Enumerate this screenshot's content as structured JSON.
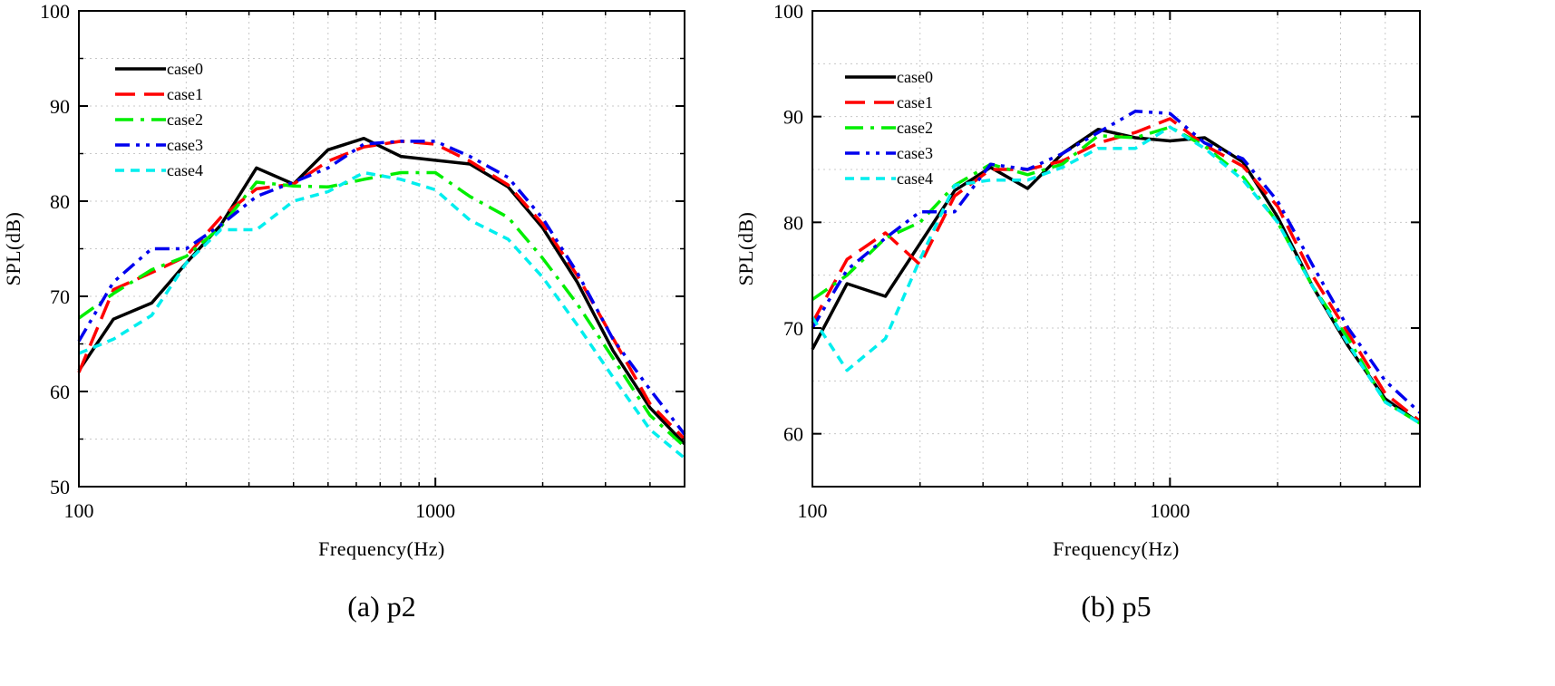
{
  "colors": {
    "case0": "#000000",
    "case1": "#ff0000",
    "case2": "#00ee00",
    "case3": "#0000ee",
    "case4": "#00eeee",
    "grid": "#c8c8c8"
  },
  "chart_data": [
    {
      "type": "line",
      "caption": "(a) p2",
      "xlabel": "Frequency(Hz)",
      "ylabel": "SPL(dB)",
      "xscale": "log",
      "xlim": [
        100,
        5000
      ],
      "ylim": [
        50,
        100
      ],
      "xticks": [
        100,
        1000
      ],
      "xtick_labels": [
        "100",
        "1000"
      ],
      "yticks": [
        50,
        60,
        70,
        80,
        90,
        100
      ],
      "ytick_labels": [
        "50",
        "60",
        "70",
        "80",
        "90",
        "100"
      ],
      "grid": true,
      "legend_position": "top-left",
      "x": [
        100,
        125,
        160,
        200,
        250,
        315,
        400,
        500,
        630,
        800,
        1000,
        1250,
        1600,
        2000,
        2500,
        3150,
        4000,
        5000
      ],
      "series": [
        {
          "name": "case0",
          "style": "solid",
          "values": [
            62.2,
            67.6,
            69.3,
            73.5,
            77.5,
            83.5,
            81.8,
            85.4,
            86.6,
            84.7,
            84.3,
            83.9,
            81.5,
            77.2,
            71.5,
            64.3,
            58.3,
            54.5
          ]
        },
        {
          "name": "case1",
          "style": "dash",
          "values": [
            62.0,
            70.7,
            72.5,
            74.2,
            78.3,
            81.3,
            81.8,
            84.2,
            85.7,
            86.3,
            86.0,
            84.2,
            81.7,
            77.6,
            72.2,
            65.6,
            58.7,
            55.0
          ]
        },
        {
          "name": "case2",
          "style": "dashdot",
          "values": [
            67.7,
            70.3,
            72.8,
            74.2,
            77.3,
            82.0,
            81.6,
            81.5,
            82.3,
            83.0,
            83.0,
            80.5,
            78.3,
            74.0,
            69.2,
            63.5,
            57.5,
            54.2
          ]
        },
        {
          "name": "case3",
          "style": "dashdotdot",
          "values": [
            65.3,
            71.5,
            75.0,
            75.0,
            77.5,
            80.5,
            82.0,
            83.5,
            86.0,
            86.3,
            86.3,
            84.7,
            82.5,
            78.2,
            72.5,
            65.5,
            60.2,
            55.5
          ]
        },
        {
          "name": "case4",
          "style": "shortdash",
          "values": [
            64.0,
            65.5,
            68.0,
            73.5,
            77.0,
            77.0,
            80.0,
            81.0,
            83.0,
            82.3,
            81.2,
            78.0,
            76.0,
            72.0,
            67.0,
            61.5,
            56.0,
            53.0
          ]
        }
      ]
    },
    {
      "type": "line",
      "caption": "(b) p5",
      "xlabel": "Frequency(Hz)",
      "ylabel": "SPL(dB)",
      "xscale": "log",
      "xlim": [
        100,
        5000
      ],
      "ylim": [
        55,
        100
      ],
      "xticks": [
        100,
        1000
      ],
      "xtick_labels": [
        "100",
        "1000"
      ],
      "yticks": [
        60,
        70,
        80,
        90,
        100
      ],
      "ytick_labels": [
        "60",
        "70",
        "80",
        "90",
        "100"
      ],
      "grid": true,
      "legend_position": "top-left",
      "x": [
        100,
        125,
        160,
        200,
        250,
        315,
        400,
        500,
        630,
        800,
        1000,
        1250,
        1600,
        2000,
        2500,
        3150,
        4000,
        5000
      ],
      "series": [
        {
          "name": "case0",
          "style": "solid",
          "values": [
            68.0,
            74.2,
            73.0,
            78.0,
            83.0,
            85.2,
            83.2,
            86.5,
            88.8,
            88.0,
            87.7,
            88.0,
            85.7,
            80.5,
            74.0,
            68.3,
            63.3,
            61.0
          ]
        },
        {
          "name": "case1",
          "style": "dash",
          "values": [
            70.5,
            76.5,
            79.0,
            76.0,
            82.5,
            85.0,
            85.0,
            85.8,
            87.5,
            88.5,
            89.8,
            87.3,
            85.3,
            81.5,
            75.0,
            69.5,
            63.8,
            61.2
          ]
        },
        {
          "name": "case2",
          "style": "dashdot",
          "values": [
            72.7,
            75.0,
            78.5,
            80.0,
            83.5,
            85.5,
            84.5,
            85.5,
            88.2,
            88.0,
            89.0,
            87.2,
            84.3,
            80.0,
            74.0,
            69.0,
            63.0,
            61.0
          ]
        },
        {
          "name": "case3",
          "style": "dashdotdot",
          "values": [
            70.0,
            75.5,
            78.5,
            81.0,
            81.0,
            85.5,
            85.0,
            86.5,
            88.5,
            90.5,
            90.3,
            87.5,
            86.0,
            82.0,
            76.0,
            70.0,
            65.0,
            62.0
          ]
        },
        {
          "name": "case4",
          "style": "shortdash",
          "values": [
            71.0,
            66.0,
            69.0,
            76.5,
            83.5,
            84.0,
            84.0,
            85.2,
            87.0,
            87.0,
            89.0,
            87.0,
            84.0,
            80.0,
            74.0,
            68.5,
            63.0,
            61.0
          ]
        }
      ]
    }
  ]
}
